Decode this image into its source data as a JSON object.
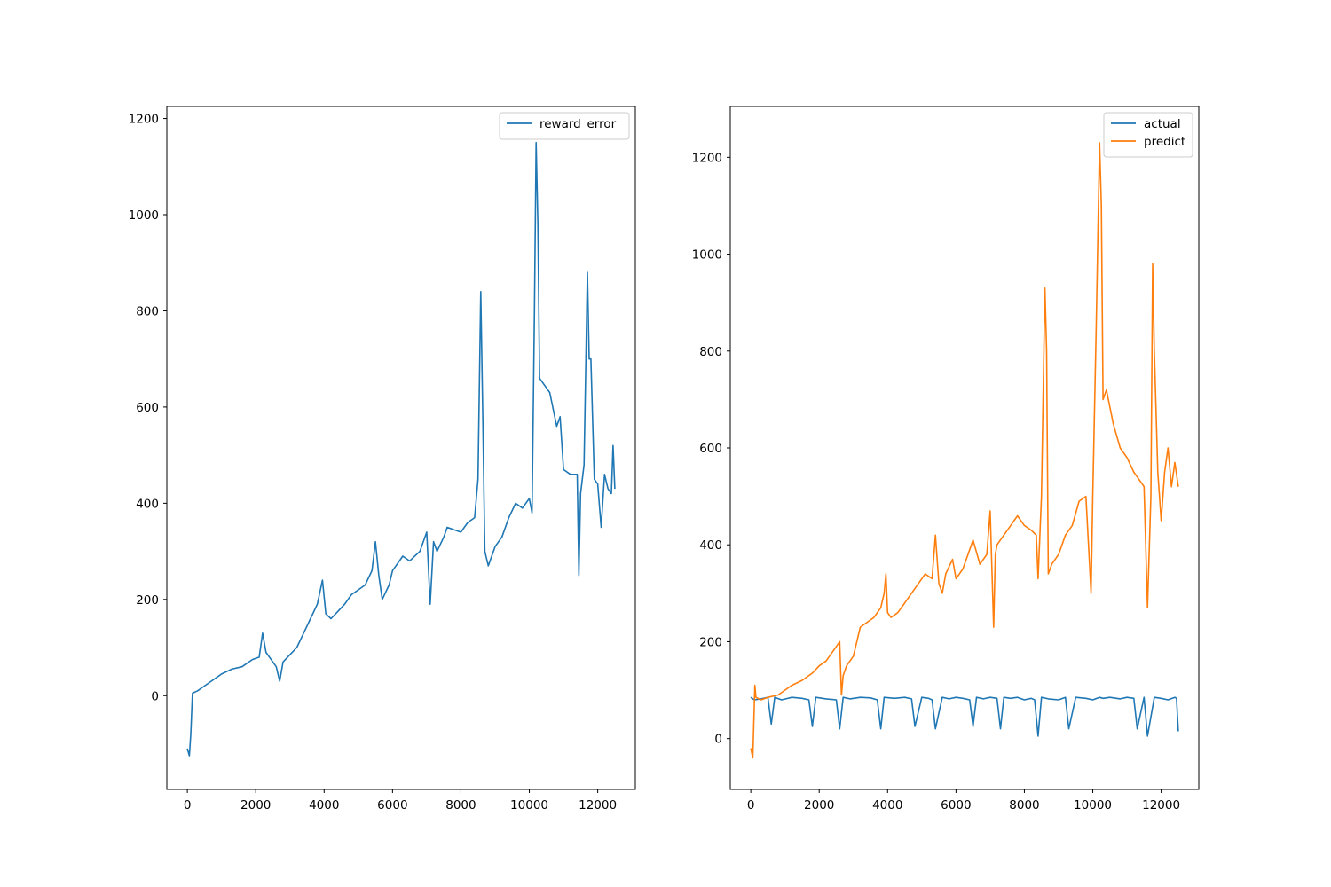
{
  "chart_data": [
    {
      "type": "line",
      "title": "",
      "xlabel": "",
      "ylabel": "",
      "xlim": [
        -600,
        13100
      ],
      "ylim": [
        -195,
        1225
      ],
      "x_ticks": [
        0,
        2000,
        4000,
        6000,
        8000,
        10000,
        12000
      ],
      "y_ticks": [
        0,
        200,
        400,
        600,
        800,
        1000,
        1200
      ],
      "grid": false,
      "legend_position": "upper right",
      "colors": {
        "reward_error": "#1f77b4"
      },
      "series": [
        {
          "name": "reward_error",
          "color": "#1f77b4",
          "x": [
            0,
            60,
            100,
            150,
            300,
            500,
            700,
            1000,
            1300,
            1600,
            1900,
            2100,
            2200,
            2300,
            2500,
            2600,
            2700,
            2800,
            3000,
            3200,
            3400,
            3600,
            3800,
            3950,
            4050,
            4200,
            4400,
            4600,
            4800,
            5000,
            5200,
            5400,
            5500,
            5600,
            5700,
            5900,
            6000,
            6100,
            6300,
            6500,
            6800,
            7000,
            7100,
            7200,
            7300,
            7500,
            7600,
            7800,
            8000,
            8200,
            8400,
            8500,
            8580,
            8640,
            8700,
            8800,
            9000,
            9200,
            9400,
            9600,
            9800,
            10000,
            10080,
            10150,
            10200,
            10250,
            10300,
            10400,
            10600,
            10800,
            10900,
            11000,
            11200,
            11400,
            11450,
            11500,
            11600,
            11700,
            11750,
            11800,
            11900,
            12000,
            12100,
            12200,
            12300,
            12400,
            12450,
            12500
          ],
          "values": [
            -110,
            -125,
            -80,
            5,
            10,
            20,
            30,
            45,
            55,
            60,
            75,
            80,
            130,
            90,
            70,
            60,
            30,
            70,
            85,
            100,
            130,
            160,
            190,
            240,
            170,
            160,
            175,
            190,
            210,
            220,
            230,
            260,
            320,
            250,
            200,
            230,
            260,
            270,
            290,
            280,
            300,
            340,
            190,
            320,
            300,
            330,
            350,
            345,
            340,
            360,
            370,
            450,
            840,
            580,
            300,
            270,
            310,
            330,
            370,
            400,
            390,
            410,
            380,
            800,
            1150,
            980,
            660,
            650,
            630,
            560,
            580,
            470,
            460,
            460,
            250,
            420,
            480,
            880,
            700,
            700,
            450,
            440,
            350,
            460,
            430,
            420,
            520,
            430
          ]
        }
      ]
    },
    {
      "type": "line",
      "title": "",
      "xlabel": "",
      "ylabel": "",
      "xlim": [
        -600,
        13100
      ],
      "ylim": [
        -105,
        1305
      ],
      "x_ticks": [
        0,
        2000,
        4000,
        6000,
        8000,
        10000,
        12000
      ],
      "y_ticks": [
        0,
        200,
        400,
        600,
        800,
        1000,
        1200
      ],
      "grid": false,
      "legend_position": "upper right",
      "colors": {
        "actual": "#1f77b4",
        "predict": "#ff7f0e"
      },
      "series": [
        {
          "name": "actual",
          "color": "#1f77b4",
          "x": [
            0,
            100,
            300,
            500,
            600,
            700,
            900,
            1200,
            1500,
            1700,
            1800,
            1900,
            2200,
            2500,
            2600,
            2700,
            2900,
            3200,
            3500,
            3700,
            3800,
            3900,
            4200,
            4500,
            4700,
            4800,
            5000,
            5200,
            5300,
            5400,
            5600,
            5800,
            6000,
            6200,
            6400,
            6500,
            6600,
            6800,
            7000,
            7200,
            7300,
            7400,
            7600,
            7800,
            8000,
            8200,
            8300,
            8400,
            8500,
            8700,
            9000,
            9200,
            9300,
            9500,
            9800,
            10000,
            10200,
            10300,
            10500,
            10800,
            11000,
            11200,
            11300,
            11500,
            11600,
            11800,
            12000,
            12200,
            12400,
            12450,
            12500
          ],
          "values": [
            85,
            80,
            82,
            85,
            30,
            85,
            80,
            85,
            83,
            80,
            25,
            85,
            82,
            80,
            20,
            85,
            82,
            85,
            84,
            80,
            20,
            85,
            83,
            85,
            82,
            25,
            85,
            83,
            80,
            20,
            85,
            82,
            85,
            83,
            80,
            25,
            85,
            82,
            85,
            83,
            20,
            85,
            83,
            85,
            80,
            83,
            80,
            5,
            85,
            82,
            80,
            85,
            20,
            85,
            83,
            80,
            85,
            83,
            85,
            82,
            85,
            83,
            20,
            85,
            5,
            85,
            83,
            80,
            85,
            83,
            15
          ]
        },
        {
          "name": "predict",
          "color": "#ff7f0e",
          "x": [
            0,
            60,
            120,
            150,
            300,
            500,
            800,
            1000,
            1200,
            1500,
            1800,
            2000,
            2200,
            2400,
            2600,
            2650,
            2700,
            2800,
            3000,
            3200,
            3400,
            3600,
            3800,
            3900,
            3950,
            4000,
            4100,
            4300,
            4500,
            4700,
            4900,
            5100,
            5300,
            5400,
            5500,
            5600,
            5700,
            5900,
            6000,
            6200,
            6400,
            6500,
            6700,
            6900,
            7000,
            7100,
            7150,
            7200,
            7400,
            7600,
            7800,
            8000,
            8200,
            8350,
            8400,
            8500,
            8600,
            8650,
            8700,
            8800,
            9000,
            9200,
            9400,
            9600,
            9800,
            9950,
            10000,
            10100,
            10200,
            10250,
            10300,
            10400,
            10600,
            10800,
            11000,
            11200,
            11400,
            11500,
            11600,
            11700,
            11750,
            11800,
            11900,
            12000,
            12100,
            12200,
            12300,
            12400,
            12500
          ],
          "values": [
            -20,
            -40,
            110,
            85,
            80,
            85,
            90,
            100,
            110,
            120,
            135,
            150,
            160,
            180,
            200,
            90,
            130,
            150,
            170,
            230,
            240,
            250,
            270,
            300,
            340,
            260,
            250,
            260,
            280,
            300,
            320,
            340,
            330,
            420,
            320,
            300,
            340,
            370,
            330,
            350,
            390,
            410,
            360,
            380,
            470,
            230,
            380,
            400,
            420,
            440,
            460,
            440,
            430,
            420,
            330,
            500,
            930,
            800,
            340,
            360,
            380,
            420,
            440,
            490,
            500,
            300,
            500,
            850,
            1230,
            1100,
            700,
            720,
            650,
            600,
            580,
            550,
            530,
            520,
            270,
            500,
            980,
            800,
            550,
            450,
            550,
            600,
            520,
            570,
            520
          ]
        }
      ]
    }
  ]
}
